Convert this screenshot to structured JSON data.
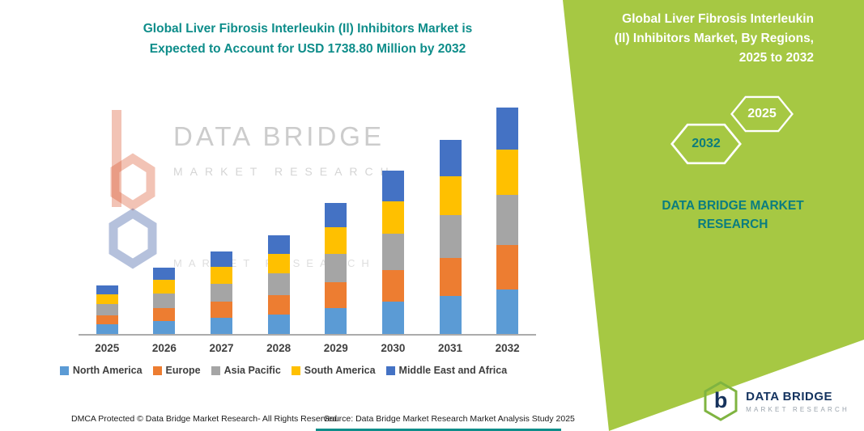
{
  "header": {
    "title_line1": "Global Liver Fibrosis Interleukin (Il) Inhibitors Market is",
    "title_line2": "Expected to Account for USD 1738.80 Million by 2032"
  },
  "chart_data": {
    "type": "bar",
    "stacked": true,
    "title": "Global Liver Fibrosis Interleukin (Il) Inhibitors Market is Expected to Account for USD 1738.80 Million by 2032",
    "unit": "USD Million",
    "categories": [
      "2025",
      "2026",
      "2027",
      "2028",
      "2029",
      "2030",
      "2031",
      "2032"
    ],
    "series": [
      {
        "name": "North America",
        "color": "#5B9BD5",
        "values": [
          73,
          100,
          124,
          148,
          197,
          246,
          292,
          341
        ]
      },
      {
        "name": "Europe",
        "color": "#ED7D31",
        "values": [
          73,
          100,
          124,
          149,
          198,
          246,
          293,
          342
        ]
      },
      {
        "name": "Asia Pacific",
        "color": "#A5A5A5",
        "values": [
          82,
          112,
          140,
          167,
          222,
          277,
          329,
          384
        ]
      },
      {
        "name": "South America",
        "color": "#FFC000",
        "values": [
          75,
          102,
          127,
          152,
          202,
          251,
          298,
          348
        ]
      },
      {
        "name": "Middle East and Africa",
        "color": "#4472C4",
        "values": [
          70,
          95,
          118,
          142,
          187,
          234,
          278,
          323.8
        ]
      }
    ],
    "total_2032": 1738.8,
    "ylim": [
      0,
      1800
    ],
    "grid": false,
    "legend_position": "bottom"
  },
  "right_panel": {
    "title_line1": "Global Liver Fibrosis Interleukin",
    "title_line2": "(Il) Inhibitors Market, By Regions,",
    "title_line3": "2025 to 2032",
    "hexagon_left_label": "2032",
    "hexagon_right_label": "2025",
    "brand_line1": "DATA BRIDGE MARKET",
    "brand_line2": "RESEARCH",
    "panel_color": "#A6C843",
    "accent_teal": "#0D7C7C"
  },
  "watermark": {
    "brand": "DATA BRIDGE",
    "sub": "MARKET RESEARCH",
    "sub2": "MARKET RESEARCH"
  },
  "footer": {
    "dmca": "DMCA Protected © Data Bridge Market Research-  All Rights Reserved.",
    "source": "Source: Data Bridge Market Research  Market Analysis Study 2025"
  },
  "brand_logo": {
    "letter": "b",
    "name": "DATA BRIDGE",
    "tagline": "MARKET RESEARCH"
  }
}
